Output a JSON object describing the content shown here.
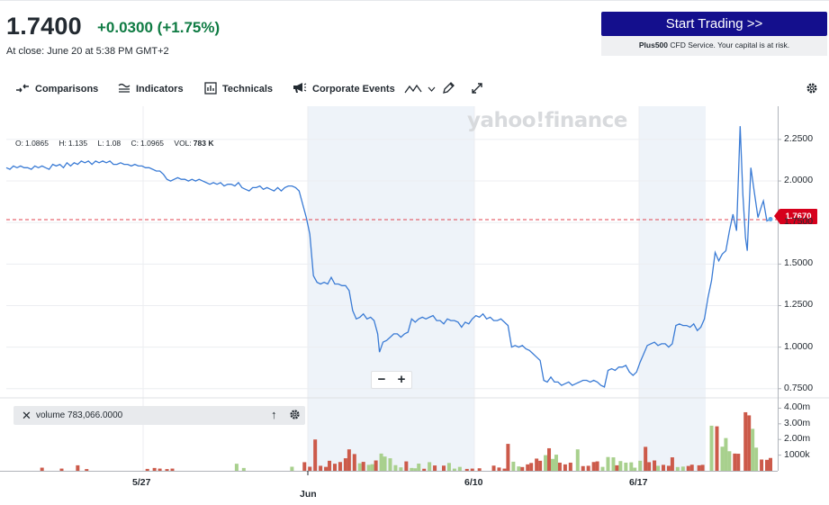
{
  "quote": {
    "price": "1.7400",
    "change": "+0.0300",
    "change_pct": "(+1.75%)",
    "close_note": "At close: June 20 at 5:38 PM GMT+2"
  },
  "ad": {
    "button_label": "Start Trading >>",
    "note_brand": "Plus500",
    "note_text": " CFD Service. Your capital is at risk."
  },
  "toolbar": {
    "comparisons": "Comparisons",
    "indicators": "Indicators",
    "technicals": "Technicals",
    "corporate_events": "Corporate Events"
  },
  "ohlc": {
    "o_label": "O:",
    "o_value": "1.0865",
    "h_label": "H:",
    "h_value": "1.135",
    "l_label": "L:",
    "l_value": "1.08",
    "c_label": "C:",
    "c_value": "1.0965",
    "vol_label": "VOL:",
    "vol_value": "783 K"
  },
  "watermark": "yahoo!finance",
  "current_price_tag": "1.7670",
  "zoom": {
    "minus": "−",
    "plus": "+"
  },
  "volume_pill": {
    "label": "volume 783,066.0000"
  },
  "colors": {
    "line": "#3a7bd5",
    "up_volume": "#a8d08d",
    "down_volume": "#cc5a4a",
    "shade": "#eef3f9",
    "price_tag": "#d6001c",
    "positive": "#0f7b43",
    "ad_button": "#140f8d"
  },
  "chart_data": {
    "type": "line",
    "y_tick_labels": [
      "2.2500",
      "2.0000",
      "1.7500",
      "1.5000",
      "1.2500",
      "1.0000",
      "0.7500"
    ],
    "y_ticks": [
      2.25,
      2.0,
      1.75,
      1.5,
      1.25,
      1.0,
      0.75
    ],
    "x_tick_labels": [
      "5/27",
      "Jun",
      "6/10",
      "6/17"
    ],
    "ylim": [
      0.7,
      2.45
    ],
    "reference_price": 1.767,
    "volume_tick_labels": [
      "4.00m",
      "3.00m",
      "2.00m",
      "1000k"
    ],
    "volume_ticks": [
      4000000,
      3000000,
      2000000,
      1000000
    ],
    "volume_ylim": [
      0,
      4600000
    ],
    "price_series": [
      [
        0,
        2.08
      ],
      [
        4,
        2.07
      ],
      [
        8,
        2.09
      ],
      [
        12,
        2.08
      ],
      [
        16,
        2.09
      ],
      [
        20,
        2.08
      ],
      [
        24,
        2.08
      ],
      [
        28,
        2.07
      ],
      [
        32,
        2.09
      ],
      [
        36,
        2.08
      ],
      [
        40,
        2.09
      ],
      [
        44,
        2.08
      ],
      [
        48,
        2.07
      ],
      [
        52,
        2.1
      ],
      [
        56,
        2.09
      ],
      [
        60,
        2.1
      ],
      [
        64,
        2.08
      ],
      [
        68,
        2.11
      ],
      [
        72,
        2.09
      ],
      [
        76,
        2.11
      ],
      [
        80,
        2.1
      ],
      [
        84,
        2.12
      ],
      [
        88,
        2.11
      ],
      [
        92,
        2.12
      ],
      [
        96,
        2.1
      ],
      [
        100,
        2.12
      ],
      [
        104,
        2.11
      ],
      [
        108,
        2.12
      ],
      [
        112,
        2.11
      ],
      [
        116,
        2.12
      ],
      [
        120,
        2.1
      ],
      [
        124,
        2.1
      ],
      [
        128,
        2.11
      ],
      [
        132,
        2.1
      ],
      [
        136,
        2.1
      ],
      [
        140,
        2.09
      ],
      [
        144,
        2.1
      ],
      [
        148,
        2.09
      ],
      [
        152,
        2.09
      ],
      [
        156,
        2.08
      ],
      [
        160,
        2.08
      ],
      [
        164,
        2.07
      ],
      [
        168,
        2.06
      ],
      [
        172,
        2.06
      ],
      [
        176,
        2.04
      ],
      [
        180,
        2.01
      ],
      [
        184,
        2.0
      ],
      [
        188,
        2.01
      ],
      [
        192,
        2.02
      ],
      [
        196,
        2.01
      ],
      [
        200,
        2.01
      ],
      [
        204,
        2.0
      ],
      [
        208,
        2.01
      ],
      [
        212,
        2.0
      ],
      [
        216,
        2.01
      ],
      [
        220,
        2.0
      ],
      [
        224,
        1.99
      ],
      [
        228,
        1.98
      ],
      [
        232,
        1.99
      ],
      [
        236,
        1.98
      ],
      [
        240,
        1.99
      ],
      [
        244,
        1.97
      ],
      [
        248,
        1.98
      ],
      [
        252,
        1.98
      ],
      [
        256,
        1.97
      ],
      [
        260,
        1.99
      ],
      [
        264,
        1.96
      ],
      [
        268,
        1.95
      ],
      [
        272,
        1.94
      ],
      [
        276,
        1.96
      ],
      [
        280,
        1.96
      ],
      [
        284,
        1.97
      ],
      [
        288,
        1.95
      ],
      [
        292,
        1.96
      ],
      [
        296,
        1.95
      ],
      [
        300,
        1.94
      ],
      [
        304,
        1.96
      ],
      [
        308,
        1.94
      ],
      [
        312,
        1.96
      ],
      [
        316,
        1.97
      ],
      [
        320,
        1.97
      ],
      [
        324,
        1.96
      ],
      [
        328,
        1.94
      ],
      [
        332,
        1.86
      ],
      [
        336,
        1.78
      ],
      [
        340,
        1.68
      ],
      [
        344,
        1.43
      ],
      [
        348,
        1.39
      ],
      [
        352,
        1.38
      ],
      [
        356,
        1.39
      ],
      [
        360,
        1.38
      ],
      [
        364,
        1.42
      ],
      [
        368,
        1.38
      ],
      [
        372,
        1.38
      ],
      [
        376,
        1.37
      ],
      [
        380,
        1.37
      ],
      [
        384,
        1.34
      ],
      [
        388,
        1.22
      ],
      [
        392,
        1.17
      ],
      [
        396,
        1.18
      ],
      [
        400,
        1.2
      ],
      [
        404,
        1.17
      ],
      [
        408,
        1.18
      ],
      [
        412,
        1.16
      ],
      [
        416,
        1.08
      ],
      [
        418,
        0.97
      ],
      [
        422,
        1.03
      ],
      [
        426,
        1.04
      ],
      [
        430,
        1.06
      ],
      [
        434,
        1.08
      ],
      [
        438,
        1.08
      ],
      [
        442,
        1.06
      ],
      [
        446,
        1.08
      ],
      [
        450,
        1.09
      ],
      [
        454,
        1.17
      ],
      [
        458,
        1.15
      ],
      [
        462,
        1.17
      ],
      [
        466,
        1.18
      ],
      [
        470,
        1.17
      ],
      [
        474,
        1.18
      ],
      [
        478,
        1.19
      ],
      [
        482,
        1.16
      ],
      [
        486,
        1.16
      ],
      [
        490,
        1.14
      ],
      [
        494,
        1.17
      ],
      [
        498,
        1.16
      ],
      [
        502,
        1.16
      ],
      [
        506,
        1.15
      ],
      [
        510,
        1.12
      ],
      [
        514,
        1.15
      ],
      [
        518,
        1.14
      ],
      [
        522,
        1.17
      ],
      [
        526,
        1.19
      ],
      [
        530,
        1.18
      ],
      [
        534,
        1.2
      ],
      [
        538,
        1.17
      ],
      [
        542,
        1.18
      ],
      [
        546,
        1.16
      ],
      [
        550,
        1.16
      ],
      [
        554,
        1.17
      ],
      [
        558,
        1.15
      ],
      [
        562,
        1.13
      ],
      [
        566,
        1.0
      ],
      [
        570,
        1.01
      ],
      [
        574,
        1.0
      ],
      [
        578,
        1.01
      ],
      [
        582,
        0.99
      ],
      [
        586,
        0.98
      ],
      [
        590,
        0.96
      ],
      [
        594,
        0.94
      ],
      [
        598,
        0.92
      ],
      [
        602,
        0.8
      ],
      [
        606,
        0.79
      ],
      [
        610,
        0.82
      ],
      [
        614,
        0.79
      ],
      [
        618,
        0.79
      ],
      [
        622,
        0.77
      ],
      [
        626,
        0.78
      ],
      [
        630,
        0.79
      ],
      [
        634,
        0.77
      ],
      [
        638,
        0.78
      ],
      [
        642,
        0.79
      ],
      [
        646,
        0.8
      ],
      [
        650,
        0.8
      ],
      [
        654,
        0.79
      ],
      [
        658,
        0.8
      ],
      [
        662,
        0.79
      ],
      [
        666,
        0.77
      ],
      [
        670,
        0.76
      ],
      [
        674,
        0.86
      ],
      [
        678,
        0.87
      ],
      [
        682,
        0.86
      ],
      [
        686,
        0.88
      ],
      [
        690,
        0.88
      ],
      [
        694,
        0.89
      ],
      [
        698,
        0.85
      ],
      [
        702,
        0.83
      ],
      [
        706,
        0.85
      ],
      [
        710,
        0.91
      ],
      [
        714,
        0.96
      ],
      [
        718,
        1.01
      ],
      [
        722,
        1.02
      ],
      [
        726,
        1.03
      ],
      [
        730,
        1.01
      ],
      [
        734,
        1.02
      ],
      [
        738,
        1.02
      ],
      [
        742,
        1.0
      ],
      [
        746,
        1.02
      ],
      [
        750,
        1.13
      ],
      [
        754,
        1.14
      ],
      [
        758,
        1.13
      ],
      [
        762,
        1.13
      ],
      [
        766,
        1.12
      ],
      [
        770,
        1.14
      ],
      [
        774,
        1.1
      ],
      [
        778,
        1.12
      ],
      [
        782,
        1.17
      ],
      [
        786,
        1.3
      ],
      [
        790,
        1.4
      ],
      [
        794,
        1.57
      ],
      [
        798,
        1.52
      ],
      [
        802,
        1.56
      ],
      [
        806,
        1.58
      ],
      [
        810,
        1.7
      ],
      [
        814,
        1.8
      ],
      [
        818,
        1.7
      ],
      [
        822,
        2.33
      ],
      [
        825,
        1.92
      ],
      [
        828,
        1.66
      ],
      [
        830,
        1.58
      ],
      [
        834,
        2.08
      ],
      [
        838,
        1.93
      ],
      [
        842,
        1.78
      ],
      [
        846,
        1.85
      ],
      [
        848,
        1.88
      ],
      [
        852,
        1.76
      ],
      [
        856,
        1.77
      ]
    ],
    "volume_series": [
      [
        40,
        200000,
        "down"
      ],
      [
        62,
        140000,
        "down"
      ],
      [
        80,
        350000,
        "down"
      ],
      [
        90,
        110000,
        "down"
      ],
      [
        158,
        120000,
        "down"
      ],
      [
        166,
        180000,
        "down"
      ],
      [
        172,
        140000,
        "down"
      ],
      [
        180,
        110000,
        "down"
      ],
      [
        186,
        140000,
        "down"
      ],
      [
        258,
        450000,
        "up"
      ],
      [
        266,
        180000,
        "up"
      ],
      [
        320,
        260000,
        "up"
      ],
      [
        334,
        550000,
        "down"
      ],
      [
        340,
        260000,
        "down"
      ],
      [
        346,
        2000000,
        "down"
      ],
      [
        352,
        320000,
        "down"
      ],
      [
        358,
        250000,
        "down"
      ],
      [
        362,
        640000,
        "down"
      ],
      [
        368,
        450000,
        "down"
      ],
      [
        374,
        560000,
        "down"
      ],
      [
        380,
        800000,
        "down"
      ],
      [
        384,
        1370000,
        "down"
      ],
      [
        390,
        1070000,
        "down"
      ],
      [
        396,
        480000,
        "up"
      ],
      [
        400,
        570000,
        "down"
      ],
      [
        406,
        380000,
        "up"
      ],
      [
        410,
        420000,
        "up"
      ],
      [
        414,
        660000,
        "down"
      ],
      [
        420,
        1100000,
        "up"
      ],
      [
        424,
        910000,
        "up"
      ],
      [
        430,
        800000,
        "up"
      ],
      [
        436,
        360000,
        "up"
      ],
      [
        442,
        220000,
        "up"
      ],
      [
        448,
        600000,
        "down"
      ],
      [
        454,
        180000,
        "up"
      ],
      [
        458,
        160000,
        "up"
      ],
      [
        462,
        460000,
        "up"
      ],
      [
        468,
        130000,
        "down"
      ],
      [
        474,
        550000,
        "up"
      ],
      [
        480,
        340000,
        "down"
      ],
      [
        490,
        330000,
        "down"
      ],
      [
        496,
        500000,
        "up"
      ],
      [
        502,
        140000,
        "up"
      ],
      [
        508,
        250000,
        "up"
      ],
      [
        516,
        120000,
        "down"
      ],
      [
        522,
        140000,
        "down"
      ],
      [
        530,
        160000,
        "down"
      ],
      [
        546,
        330000,
        "down"
      ],
      [
        552,
        210000,
        "down"
      ],
      [
        558,
        140000,
        "down"
      ],
      [
        562,
        1720000,
        "down"
      ],
      [
        568,
        580000,
        "up"
      ],
      [
        574,
        280000,
        "up"
      ],
      [
        578,
        240000,
        "down"
      ],
      [
        584,
        410000,
        "down"
      ],
      [
        588,
        500000,
        "down"
      ],
      [
        594,
        780000,
        "down"
      ],
      [
        598,
        640000,
        "down"
      ],
      [
        604,
        1000000,
        "up"
      ],
      [
        608,
        1440000,
        "down"
      ],
      [
        612,
        760000,
        "up"
      ],
      [
        616,
        1030000,
        "up"
      ],
      [
        620,
        520000,
        "down"
      ],
      [
        626,
        410000,
        "down"
      ],
      [
        632,
        520000,
        "down"
      ],
      [
        640,
        1370000,
        "up"
      ],
      [
        646,
        300000,
        "down"
      ],
      [
        652,
        320000,
        "down"
      ],
      [
        658,
        560000,
        "down"
      ],
      [
        662,
        600000,
        "down"
      ],
      [
        668,
        250000,
        "up"
      ],
      [
        674,
        880000,
        "up"
      ],
      [
        680,
        860000,
        "up"
      ],
      [
        684,
        350000,
        "down"
      ],
      [
        688,
        620000,
        "up"
      ],
      [
        694,
        520000,
        "up"
      ],
      [
        700,
        540000,
        "up"
      ],
      [
        704,
        200000,
        "up"
      ],
      [
        710,
        640000,
        "up"
      ],
      [
        716,
        1530000,
        "down"
      ],
      [
        720,
        550000,
        "down"
      ],
      [
        726,
        660000,
        "down"
      ],
      [
        730,
        320000,
        "up"
      ],
      [
        736,
        380000,
        "down"
      ],
      [
        742,
        320000,
        "down"
      ],
      [
        746,
        860000,
        "down"
      ],
      [
        752,
        240000,
        "up"
      ],
      [
        758,
        270000,
        "up"
      ],
      [
        764,
        310000,
        "down"
      ],
      [
        768,
        390000,
        "down"
      ],
      [
        776,
        350000,
        "down"
      ],
      [
        780,
        380000,
        "down"
      ],
      [
        790,
        2880000,
        "up"
      ],
      [
        796,
        2840000,
        "down"
      ],
      [
        802,
        1540000,
        "up"
      ],
      [
        806,
        2090000,
        "up"
      ],
      [
        810,
        1250000,
        "up"
      ],
      [
        816,
        1100000,
        "down"
      ],
      [
        820,
        1090000,
        "down"
      ],
      [
        828,
        3740000,
        "down"
      ],
      [
        832,
        3540000,
        "down"
      ],
      [
        836,
        2680000,
        "up"
      ],
      [
        840,
        1480000,
        "up"
      ],
      [
        846,
        720000,
        "down"
      ],
      [
        852,
        700000,
        "down"
      ],
      [
        856,
        820000,
        "down"
      ]
    ]
  }
}
